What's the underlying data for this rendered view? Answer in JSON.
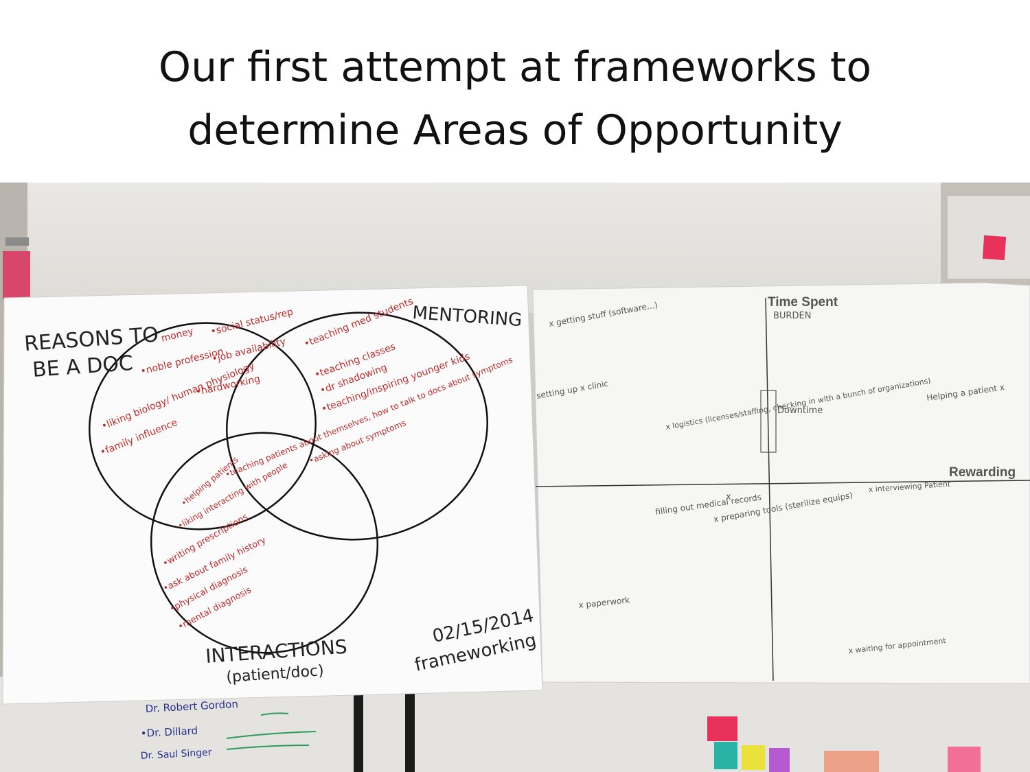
{
  "slide": {
    "title_line1": "Our first attempt at frameworks to",
    "title_line2": "determine Areas of Opportunity"
  },
  "venn_sheet": {
    "reasons_line1": "REASONS TO",
    "reasons_line2": "BE A DOC",
    "mentoring": "MENTORING",
    "interactions": "INTERACTIONS",
    "interactions_sub": "(patient/doc)",
    "date": "02/15/2014",
    "signature": "frameworking",
    "reasons_items": [
      "money",
      "•social status/rep",
      "•noble profession",
      "•job availability",
      "•hardworking",
      "•liking biology/ human physiology",
      "•family influence"
    ],
    "mentoring_items": [
      "•teaching med students",
      "•teaching classes",
      "•dr shadowing",
      "•teaching/inspiring younger kids"
    ],
    "overlap_items": [
      "•teaching patients about themselves, how to talk to docs about symptoms",
      "•helping patients",
      "•liking interacting with people",
      "•asking about symptoms"
    ],
    "interaction_items": [
      "•writing prescriptions",
      "•ask about family history",
      "•physical diagnosis",
      "•mental diagnosis"
    ]
  },
  "matrix_sheet": {
    "y_axis_label": "Time Spent",
    "y_axis_sub": "BURDEN",
    "x_axis_label": "Rewarding",
    "notes": [
      "x getting stuff (software...)",
      "setting up x clinic",
      "Downtime",
      "x logistics (licenses/staffing, checking in with a bunch of organizations)",
      "Helping a patient x",
      "x interviewing Patient",
      "filling out medical records",
      "x",
      "x preparing tools (sterilize equips)",
      "x paperwork",
      "x waiting for appointment"
    ]
  },
  "whiteboard": {
    "names": [
      "Dr. Robert Gordon",
      "•Dr. Dillard",
      "Dr. Saul Singer"
    ]
  },
  "colors": {
    "red_ink": "#c02b2b",
    "black_ink": "#222222",
    "paper": "#fbfbfb",
    "wall": "#d9d6d2"
  }
}
